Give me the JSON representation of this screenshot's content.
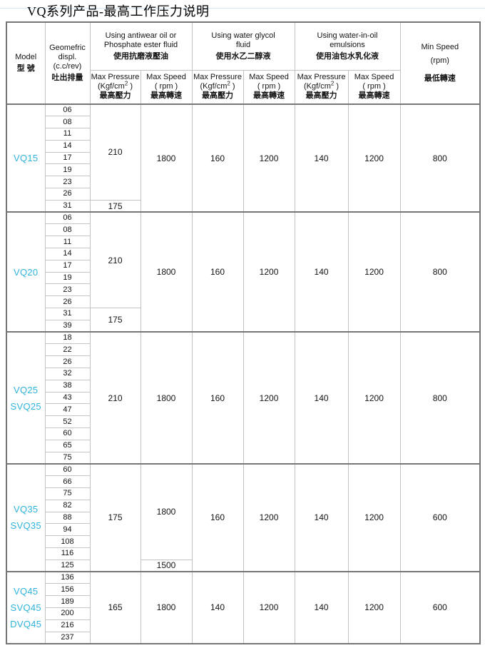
{
  "page": {
    "title": "VQ系列产品-最高工作压力说明"
  },
  "colors": {
    "accent_model": "#2fb3dc",
    "border_dark": "#767676",
    "border_light": "#c2c2c2",
    "top_rule": "#d9e7f3",
    "text": "#141414"
  },
  "table": {
    "header": {
      "model": {
        "en": "Model",
        "zh": "型 號"
      },
      "displacement": {
        "lines": [
          "Geomefric",
          "displ.",
          "(c.c/rev)"
        ],
        "zh": "吐出排量"
      },
      "groups": [
        {
          "en1": "Using antiwear oil or",
          "en2": "Phosphate ester fluid",
          "zh": "使用抗磨液壓油"
        },
        {
          "en1": "Using water glycol",
          "en2": "fluid",
          "zh": "使用水乙二醇液"
        },
        {
          "en1": "Using water-in-oil",
          "en2": "emulsions",
          "zh": "使用油包水乳化液"
        }
      ],
      "min_speed": {
        "en1": "Min Speed",
        "en2": "(rpm)",
        "zh": "最低轉速"
      },
      "sub_pressure": {
        "en1": "Max Pressure",
        "unit_pre": "(Kgf/cm",
        "unit_sup": "2",
        "unit_post": " )",
        "zh": "最高壓力"
      },
      "sub_speed": {
        "en1": "Max Speed",
        "en2": "( rpm )",
        "zh": "最高轉速"
      }
    },
    "column_keys": [
      "aw_pressure",
      "aw_speed",
      "wg_pressure",
      "wg_speed",
      "eo_pressure",
      "eo_speed",
      "min_speed"
    ],
    "sections": [
      {
        "models": [
          "VQ15"
        ],
        "displacements": [
          "06",
          "08",
          "11",
          "14",
          "17",
          "19",
          "23",
          "26",
          "31"
        ],
        "columns": {
          "aw_pressure": [
            {
              "value": "210",
              "rows": 8
            },
            {
              "value": "175",
              "rows": 1
            }
          ],
          "aw_speed": [
            {
              "value": "1800",
              "rows": 9
            }
          ],
          "wg_pressure": [
            {
              "value": "160",
              "rows": 9
            }
          ],
          "wg_speed": [
            {
              "value": "1200",
              "rows": 9
            }
          ],
          "eo_pressure": [
            {
              "value": "140",
              "rows": 9
            }
          ],
          "eo_speed": [
            {
              "value": "1200",
              "rows": 9
            }
          ],
          "min_speed": [
            {
              "value": "800",
              "rows": 9
            }
          ]
        }
      },
      {
        "models": [
          "VQ20"
        ],
        "displacements": [
          "06",
          "08",
          "11",
          "14",
          "17",
          "19",
          "23",
          "26",
          "31",
          "39"
        ],
        "columns": {
          "aw_pressure": [
            {
              "value": "210",
              "rows": 8
            },
            {
              "value": "175",
              "rows": 2
            }
          ],
          "aw_speed": [
            {
              "value": "1800",
              "rows": 10
            }
          ],
          "wg_pressure": [
            {
              "value": "160",
              "rows": 10
            }
          ],
          "wg_speed": [
            {
              "value": "1200",
              "rows": 10
            }
          ],
          "eo_pressure": [
            {
              "value": "140",
              "rows": 10
            }
          ],
          "eo_speed": [
            {
              "value": "1200",
              "rows": 10
            }
          ],
          "min_speed": [
            {
              "value": "800",
              "rows": 10
            }
          ]
        }
      },
      {
        "models": [
          "VQ25",
          "SVQ25"
        ],
        "displacements": [
          "18",
          "22",
          "26",
          "32",
          "38",
          "43",
          "47",
          "52",
          "60",
          "65",
          "75"
        ],
        "columns": {
          "aw_pressure": [
            {
              "value": "210",
              "rows": 11
            }
          ],
          "aw_speed": [
            {
              "value": "1800",
              "rows": 11
            }
          ],
          "wg_pressure": [
            {
              "value": "160",
              "rows": 11
            }
          ],
          "wg_speed": [
            {
              "value": "1200",
              "rows": 11
            }
          ],
          "eo_pressure": [
            {
              "value": "140",
              "rows": 11
            }
          ],
          "eo_speed": [
            {
              "value": "1200",
              "rows": 11
            }
          ],
          "min_speed": [
            {
              "value": "800",
              "rows": 11
            }
          ]
        }
      },
      {
        "models": [
          "VQ35",
          "SVQ35"
        ],
        "displacements": [
          "60",
          "66",
          "75",
          "82",
          "88",
          "94",
          "108",
          "116",
          "125"
        ],
        "columns": {
          "aw_pressure": [
            {
              "value": "175",
              "rows": 9
            }
          ],
          "aw_speed": [
            {
              "value": "1800",
              "rows": 8
            },
            {
              "value": "1500",
              "rows": 1
            }
          ],
          "wg_pressure": [
            {
              "value": "160",
              "rows": 9
            }
          ],
          "wg_speed": [
            {
              "value": "1200",
              "rows": 9
            }
          ],
          "eo_pressure": [
            {
              "value": "140",
              "rows": 9
            }
          ],
          "eo_speed": [
            {
              "value": "1200",
              "rows": 9
            }
          ],
          "min_speed": [
            {
              "value": "600",
              "rows": 9
            }
          ]
        }
      },
      {
        "models": [
          "VQ45",
          "SVQ45",
          "DVQ45"
        ],
        "displacements": [
          "136",
          "156",
          "189",
          "200",
          "216",
          "237"
        ],
        "columns": {
          "aw_pressure": [
            {
              "value": "165",
              "rows": 6
            }
          ],
          "aw_speed": [
            {
              "value": "1800",
              "rows": 6
            }
          ],
          "wg_pressure": [
            {
              "value": "140",
              "rows": 6
            }
          ],
          "wg_speed": [
            {
              "value": "1200",
              "rows": 6
            }
          ],
          "eo_pressure": [
            {
              "value": "140",
              "rows": 6
            }
          ],
          "eo_speed": [
            {
              "value": "1200",
              "rows": 6
            }
          ],
          "min_speed": [
            {
              "value": "600",
              "rows": 6
            }
          ]
        }
      }
    ]
  }
}
